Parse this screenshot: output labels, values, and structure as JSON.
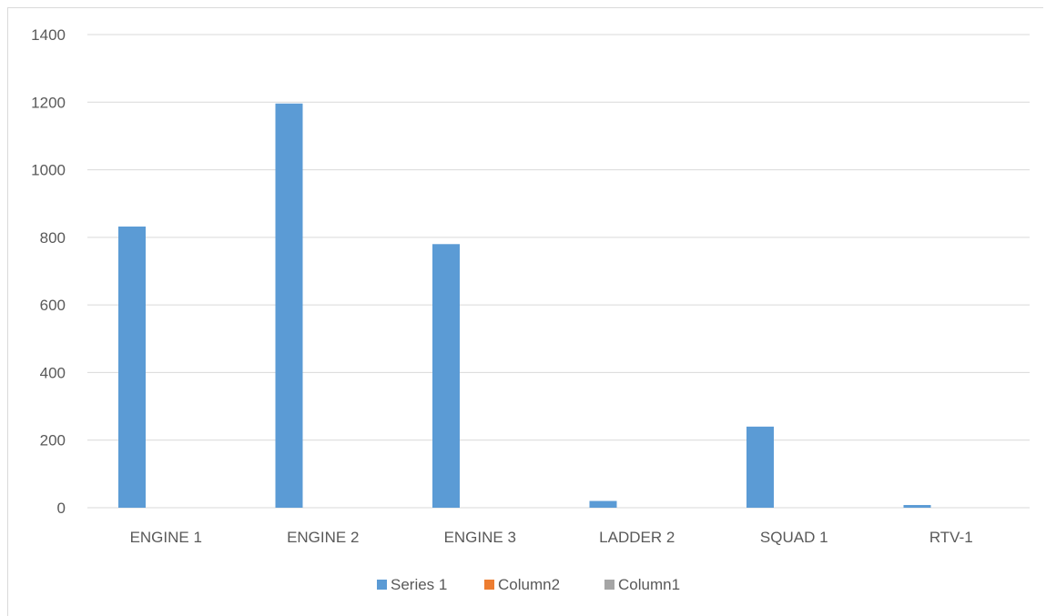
{
  "chart_data": {
    "type": "bar",
    "title": "",
    "xlabel": "",
    "ylabel": "",
    "categories": [
      "ENGINE 1",
      "ENGINE 2",
      "ENGINE 3",
      "LADDER 2",
      "SQUAD 1",
      "RTV-1"
    ],
    "ylim": [
      0,
      1400
    ],
    "yticks": [
      0,
      200,
      400,
      600,
      800,
      1000,
      1200,
      1400
    ],
    "grid": true,
    "legend_position": "bottom",
    "series": [
      {
        "name": "Series 1",
        "color": "#5b9bd5",
        "values": [
          832,
          1196,
          780,
          20,
          240,
          8
        ]
      },
      {
        "name": "Column2",
        "color": "#ed7d31",
        "values": [
          0,
          0,
          0,
          0,
          0,
          0
        ]
      },
      {
        "name": "Column1",
        "color": "#a5a5a5",
        "values": [
          0,
          0,
          0,
          0,
          0,
          0
        ]
      }
    ]
  }
}
